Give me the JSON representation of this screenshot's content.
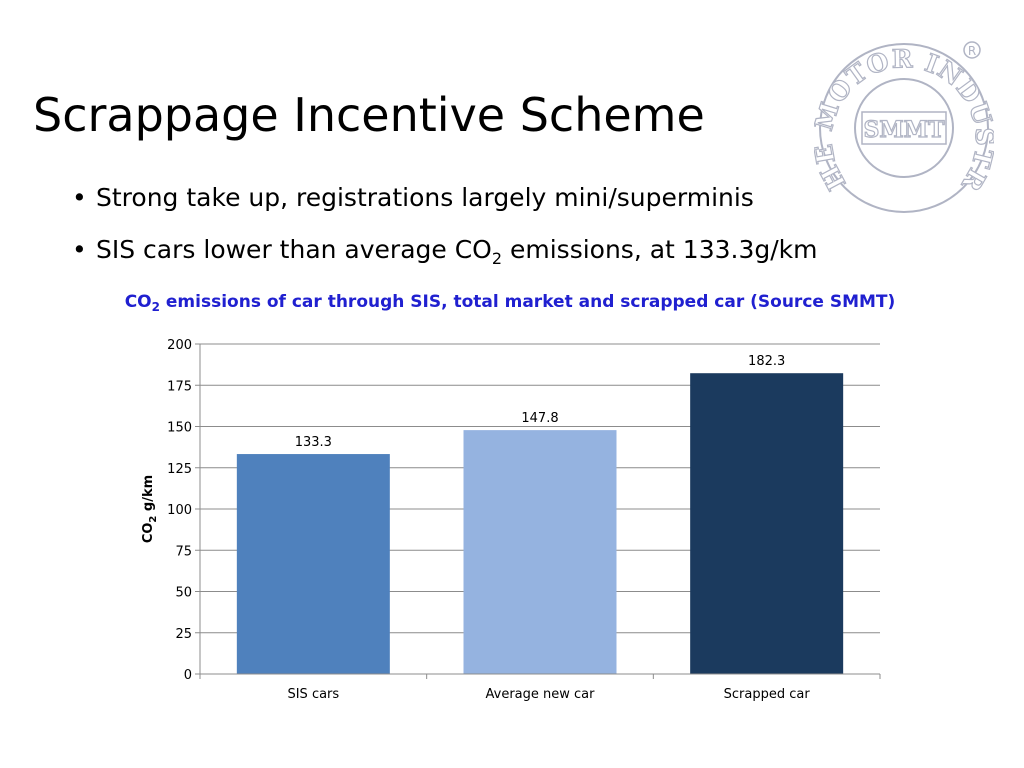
{
  "slide": {
    "title": "Scrappage Incentive Scheme",
    "bullets": [
      {
        "text": "Strong take up, registrations largely mini/superminis"
      },
      {
        "pre": "SIS cars lower than average CO",
        "sub": "2",
        "post": " emissions, at 133.3g/km"
      }
    ]
  },
  "logo": {
    "ring_text": "THE MOTOR INDUSTRY",
    "center_text": "SMMT",
    "registered_mark": "®",
    "color": "#b0b4c4"
  },
  "chart_data": {
    "type": "bar",
    "title": {
      "pre": "CO",
      "sub": "2",
      "post": " emissions of car through SIS, total market and scrapped car (Source SMMT)"
    },
    "title_color": "#2020d0",
    "categories": [
      "SIS cars",
      "Average new car",
      "Scrapped car"
    ],
    "values": [
      133.3,
      147.8,
      182.3
    ],
    "data_labels": [
      "133.3",
      "147.8",
      "182.3"
    ],
    "bar_colors": [
      "#4f81bd",
      "#95b3e0",
      "#1b3a5e"
    ],
    "ylabel": {
      "pre": "CO",
      "sub": "2",
      "post": " g/km"
    },
    "ylim": [
      0,
      200
    ],
    "yticks": [
      0,
      25,
      50,
      75,
      100,
      125,
      150,
      175,
      200
    ],
    "grid": true,
    "legend": "none"
  }
}
